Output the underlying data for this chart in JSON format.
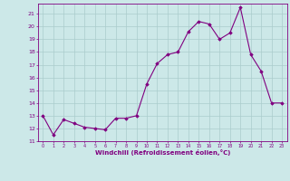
{
  "x": [
    0,
    1,
    2,
    3,
    4,
    5,
    6,
    7,
    8,
    9,
    10,
    11,
    12,
    13,
    14,
    15,
    16,
    17,
    18,
    19,
    20,
    21,
    22,
    23
  ],
  "y": [
    13,
    11.5,
    12.7,
    12.4,
    12.1,
    12.0,
    11.9,
    12.8,
    12.8,
    13.0,
    15.5,
    17.1,
    17.8,
    18.0,
    19.6,
    20.4,
    20.2,
    19.0,
    19.5,
    21.5,
    17.8,
    16.5,
    14.0,
    14.0
  ],
  "line_color": "#800080",
  "marker": "D",
  "marker_size": 1.8,
  "bg_color": "#cce8e8",
  "grid_color": "#aacccc",
  "xlabel": "Windchill (Refroidissement éolien,°C)",
  "xlabel_color": "#800080",
  "tick_color": "#800080",
  "ylim": [
    11,
    21.8
  ],
  "xlim": [
    -0.5,
    23.5
  ],
  "yticks": [
    11,
    12,
    13,
    14,
    15,
    16,
    17,
    18,
    19,
    20,
    21
  ],
  "xticks": [
    0,
    1,
    2,
    3,
    4,
    5,
    6,
    7,
    8,
    9,
    10,
    11,
    12,
    13,
    14,
    15,
    16,
    17,
    18,
    19,
    20,
    21,
    22,
    23
  ]
}
